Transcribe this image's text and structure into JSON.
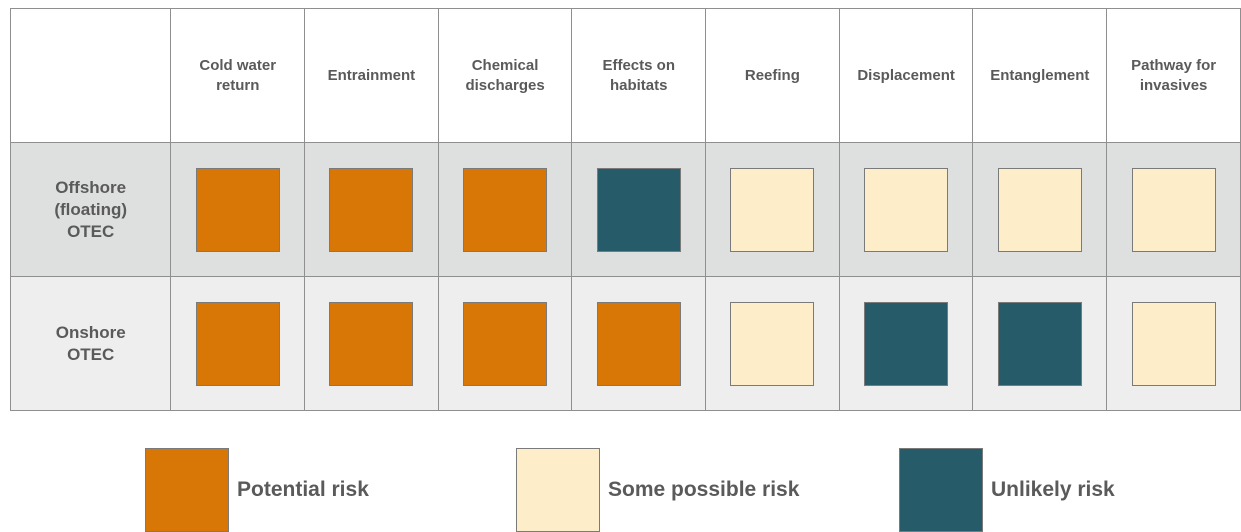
{
  "colors": {
    "potential": "#d97706",
    "some": "#fdedc9",
    "unlikely": "#265b69",
    "offshore_row_bg": "#dee0df",
    "onshore_row_bg": "#eeeeee"
  },
  "table": {
    "columns": [
      "Cold water\nreturn",
      "Entrainment",
      "Chemical\ndischarges",
      "Effects on\nhabitats",
      "Reefing",
      "Displacement",
      "Entanglement",
      "Pathway for\ninvasives"
    ],
    "rows": [
      {
        "label": "Offshore\n(floating)\nOTEC",
        "risks": [
          "potential",
          "potential",
          "potential",
          "unlikely",
          "some",
          "some",
          "some",
          "some"
        ]
      },
      {
        "label": "Onshore\nOTEC",
        "risks": [
          "potential",
          "potential",
          "potential",
          "potential",
          "some",
          "unlikely",
          "unlikely",
          "some"
        ]
      }
    ]
  },
  "legend": {
    "potential": "Potential risk",
    "some": "Some possible risk",
    "unlikely": "Unlikely risk"
  }
}
